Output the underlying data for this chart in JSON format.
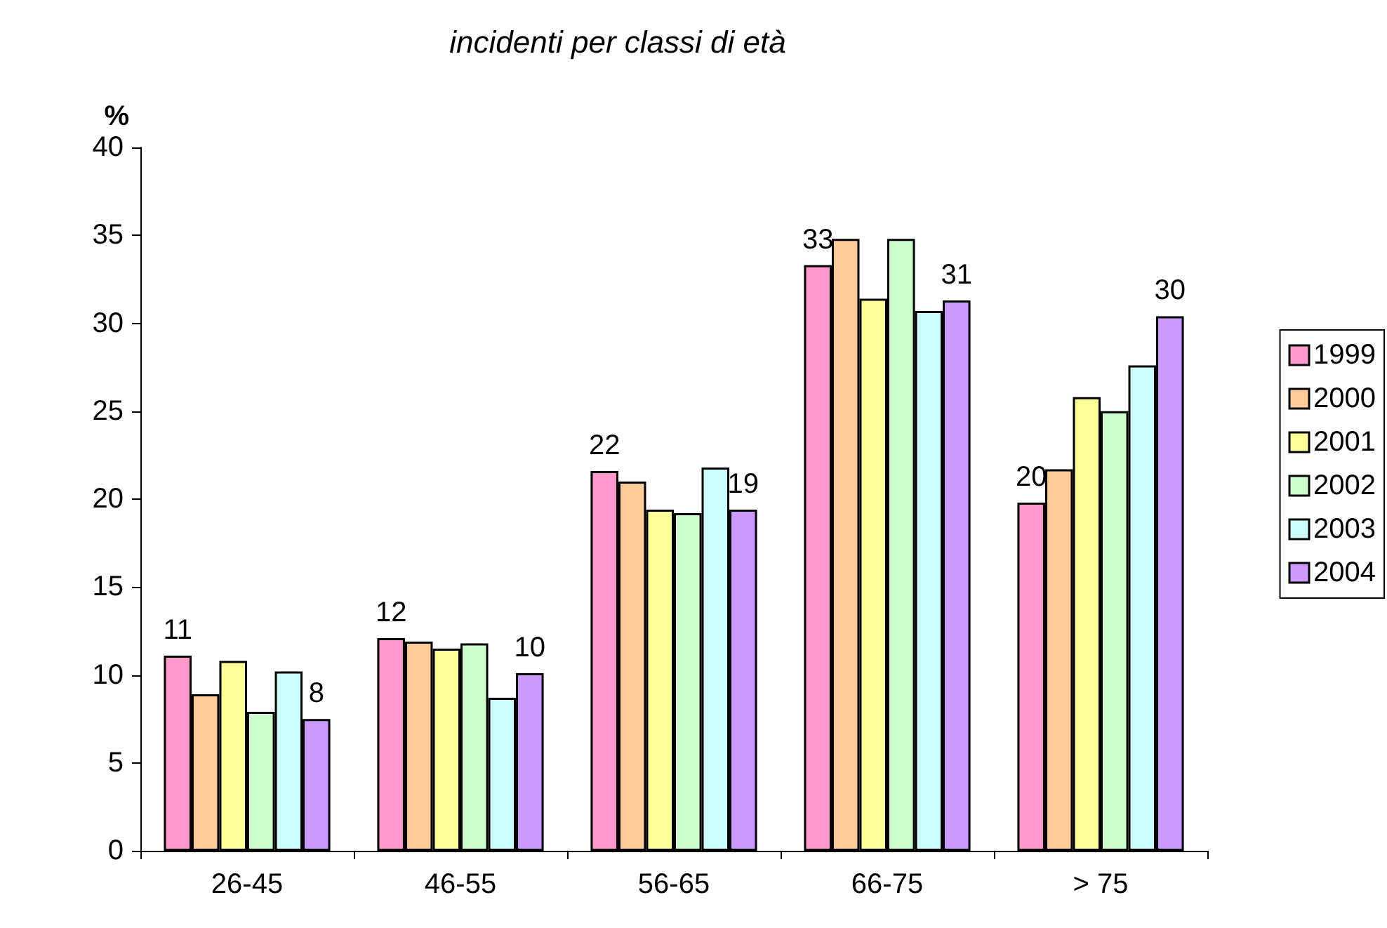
{
  "chart_data": {
    "type": "bar",
    "title": "incidenti per classi di età",
    "ylabel": "%",
    "categories": [
      "26-45",
      "46-55",
      "56-65",
      "66-75",
      "> 75"
    ],
    "series": [
      {
        "name": "1999",
        "color": "#ff99cc",
        "values": [
          11.1,
          12.1,
          21.6,
          33.3,
          19.8
        ],
        "value_labels": [
          "11",
          "12",
          "22",
          "33",
          "20"
        ]
      },
      {
        "name": "2000",
        "color": "#ffcc99",
        "values": [
          8.9,
          11.9,
          21.0,
          34.8,
          21.7
        ]
      },
      {
        "name": "2001",
        "color": "#ffff99",
        "values": [
          10.8,
          11.5,
          19.4,
          31.4,
          25.8
        ]
      },
      {
        "name": "2002",
        "color": "#ccffcc",
        "values": [
          7.9,
          11.8,
          19.2,
          34.8,
          25.0
        ]
      },
      {
        "name": "2003",
        "color": "#ccffff",
        "values": [
          10.2,
          8.7,
          21.8,
          30.7,
          27.6
        ]
      },
      {
        "name": "2004",
        "color": "#cc99ff",
        "values": [
          7.5,
          10.1,
          19.4,
          31.3,
          30.4
        ],
        "value_labels": [
          "8",
          "10",
          "19",
          "31",
          "30"
        ]
      }
    ],
    "ylim": [
      0,
      40
    ],
    "yticks": [
      0,
      5,
      10,
      15,
      20,
      25,
      30,
      35,
      40
    ],
    "grid": false,
    "legend": "right"
  }
}
